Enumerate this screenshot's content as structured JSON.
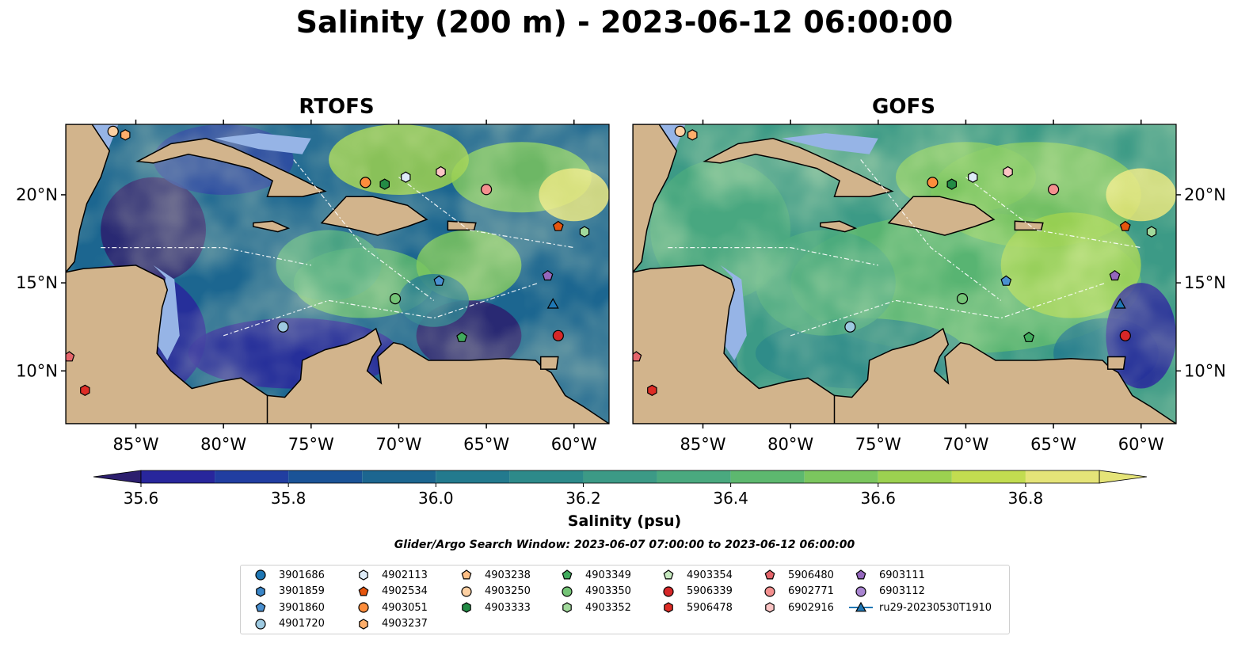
{
  "title": "Salinity (200 m) - 2023-06-12 06:00:00",
  "panels": [
    {
      "title": "RTOFS"
    },
    {
      "title": "GOFS"
    }
  ],
  "chart_data": {
    "type": "heatmap",
    "title": "Salinity (200 m) - 2023-06-12 06:00:00",
    "panel_titles": [
      "RTOFS",
      "GOFS"
    ],
    "map_extent": {
      "lon": [
        -89,
        -58
      ],
      "lat": [
        7,
        24
      ]
    },
    "x_ticks": [
      "85°W",
      "80°W",
      "75°W",
      "70°W",
      "65°W",
      "60°W"
    ],
    "y_ticks": [
      "20°N",
      "15°N",
      "10°N"
    ],
    "colorbar": {
      "label": "Salinity (psu)",
      "range": [
        35.5,
        36.9
      ],
      "ticks": [
        "35.6",
        "35.8",
        "36.0",
        "36.2",
        "36.4",
        "36.6",
        "36.8"
      ],
      "levels": [
        35.5,
        35.6,
        35.7,
        35.8,
        35.9,
        36.0,
        36.1,
        36.2,
        36.3,
        36.4,
        36.5,
        36.6,
        36.7,
        36.8,
        36.9
      ],
      "colors": [
        "#2c1e6e",
        "#28269c",
        "#213ea1",
        "#1a5397",
        "#1c6690",
        "#237a8e",
        "#2d8a8a",
        "#3c9a86",
        "#4aa97f",
        "#5db86f",
        "#7bc65e",
        "#9cd150",
        "#c2dc50",
        "#e5e478"
      ],
      "extend": "both"
    },
    "observations": [
      {
        "id": "3901686",
        "lon": null,
        "lat": null
      },
      {
        "id": "3901859",
        "lon": null,
        "lat": null
      },
      {
        "id": "3901860",
        "lon": -67.7,
        "lat": 15.1
      },
      {
        "id": "4901720",
        "lon": -76.6,
        "lat": 12.5
      },
      {
        "id": "4902113",
        "lon": -69.6,
        "lat": 21.0
      },
      {
        "id": "4902534",
        "lon": -60.9,
        "lat": 18.2
      },
      {
        "id": "4903051",
        "lon": -71.9,
        "lat": 20.7
      },
      {
        "id": "4903237",
        "lon": -85.6,
        "lat": 23.4
      },
      {
        "id": "4903238",
        "lon": null,
        "lat": null
      },
      {
        "id": "4903250",
        "lon": -86.3,
        "lat": 23.6
      },
      {
        "id": "4903333",
        "lon": -70.8,
        "lat": 20.6
      },
      {
        "id": "4903349",
        "lon": -66.4,
        "lat": 11.9
      },
      {
        "id": "4903350",
        "lon": -70.2,
        "lat": 14.1
      },
      {
        "id": "4903352",
        "lon": -59.4,
        "lat": 17.9
      },
      {
        "id": "4903354",
        "lon": null,
        "lat": null
      },
      {
        "id": "5906339",
        "lon": -60.9,
        "lat": 12.0
      },
      {
        "id": "5906478",
        "lon": -87.9,
        "lat": 8.9
      },
      {
        "id": "5906480",
        "lon": -88.8,
        "lat": 10.8
      },
      {
        "id": "6902771",
        "lon": -65.0,
        "lat": 20.3
      },
      {
        "id": "6902916",
        "lon": -67.6,
        "lat": 21.3
      },
      {
        "id": "6903111",
        "lon": -61.5,
        "lat": 15.4
      },
      {
        "id": "6903112",
        "lon": null,
        "lat": null
      },
      {
        "id": "ru29-20230530T1910",
        "lon": -61.2,
        "lat": 13.8
      }
    ]
  },
  "colorbar_label": "Salinity (psu)",
  "search_window": "Glider/Argo Search Window: 2023-06-07 07:00:00 to 2023-06-12 06:00:00",
  "legend": [
    {
      "label": "3901686",
      "marker": "circle",
      "color": "#1f77b4"
    },
    {
      "label": "3901859",
      "marker": "hexagon",
      "color": "#3a86c8"
    },
    {
      "label": "3901860",
      "marker": "pentagon",
      "color": "#4a90d0"
    },
    {
      "label": "4901720",
      "marker": "circle",
      "color": "#9ecae1"
    },
    {
      "label": "4902113",
      "marker": "hexagon",
      "color": "#deebf7"
    },
    {
      "label": "4902534",
      "marker": "pentagon",
      "color": "#e6550d"
    },
    {
      "label": "4903051",
      "marker": "circle",
      "color": "#fd8d3c"
    },
    {
      "label": "4903237",
      "marker": "hexagon",
      "color": "#fdae6b"
    },
    {
      "label": "4903238",
      "marker": "pentagon",
      "color": "#fdbe85"
    },
    {
      "label": "4903250",
      "marker": "circle",
      "color": "#fdd0a2"
    },
    {
      "label": "4903333",
      "marker": "hexagon",
      "color": "#238b45"
    },
    {
      "label": "4903349",
      "marker": "pentagon",
      "color": "#41ab5d"
    },
    {
      "label": "4903350",
      "marker": "circle",
      "color": "#74c476"
    },
    {
      "label": "4903352",
      "marker": "hexagon",
      "color": "#a1d99b"
    },
    {
      "label": "4903354",
      "marker": "pentagon",
      "color": "#c7e9c0"
    },
    {
      "label": "5906339",
      "marker": "circle",
      "color": "#d62728"
    },
    {
      "label": "5906478",
      "marker": "hexagon",
      "color": "#de2d26"
    },
    {
      "label": "5906480",
      "marker": "pentagon",
      "color": "#e5656b"
    },
    {
      "label": "6902771",
      "marker": "circle",
      "color": "#f4908f"
    },
    {
      "label": "6902916",
      "marker": "hexagon",
      "color": "#fbc4c4"
    },
    {
      "label": "6903111",
      "marker": "pentagon",
      "color": "#9467bd"
    },
    {
      "label": "6903112",
      "marker": "circle",
      "color": "#a985d1"
    },
    {
      "label": "ru29-20230530T1910",
      "marker": "triangle-line",
      "color": "#1f77b4"
    }
  ],
  "colors": {
    "land": "#d2b48c",
    "shallow": "#96b4e6",
    "coast": "#000000"
  }
}
